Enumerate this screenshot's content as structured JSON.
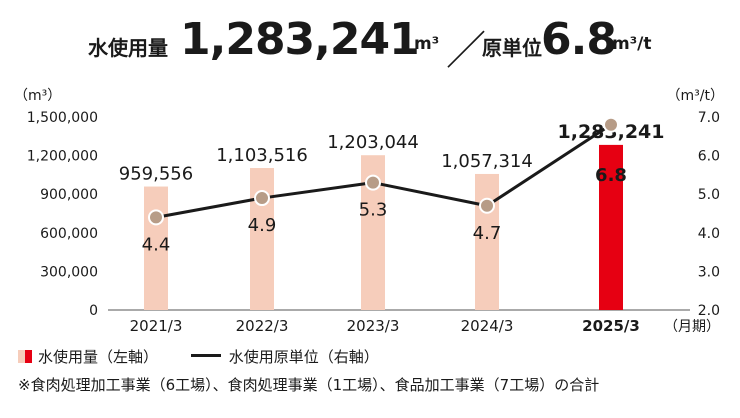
{
  "headline": {
    "label1": "水使用量",
    "value1": "1,283,241",
    "unit1": "m³",
    "slash": "／",
    "label2": "原単位",
    "value2": "6.8",
    "unit2": "m³/t"
  },
  "chart_data": {
    "type": "bar",
    "categories": [
      "2021/3",
      "2022/3",
      "2023/3",
      "2024/3",
      "2025/3"
    ],
    "highlight_index": 4,
    "series": [
      {
        "name": "水使用量（左軸）",
        "axis": "left",
        "values": [
          959556,
          1103516,
          1203044,
          1057314,
          1283241
        ],
        "labels": [
          "959,556",
          "1,103,516",
          "1,203,044",
          "1,057,314",
          "1,283,241"
        ],
        "color": "#f6cdbb",
        "highlight_color": "#e60012"
      },
      {
        "name": "水使用原単位（右軸）",
        "axis": "right",
        "type": "line",
        "values": [
          4.4,
          4.9,
          5.3,
          4.7,
          6.8
        ],
        "labels": [
          "4.4",
          "4.9",
          "5.3",
          "4.7",
          "6.8"
        ],
        "color": "#1a1a1a",
        "marker_color": "#b79c87"
      }
    ],
    "y_left": {
      "unit_label": "（m³）",
      "range": [
        0,
        1500000
      ],
      "ticks": [
        0,
        300000,
        600000,
        900000,
        1200000,
        1500000
      ],
      "tick_labels": [
        "0",
        "300,000",
        "600,000",
        "900,000",
        "1,200,000",
        "1,500,000"
      ]
    },
    "y_right": {
      "unit_label": "（m³/t）",
      "range": [
        2.0,
        7.0
      ],
      "ticks": [
        2,
        3,
        4,
        5,
        6,
        7
      ],
      "tick_labels": [
        "2.0",
        "3.0",
        "4.0",
        "5.0",
        "6.0",
        "7.0"
      ]
    },
    "x_unit_label": "（月期）",
    "grid": false,
    "legend_position": "bottom"
  },
  "legend": {
    "bar_label": "水使用量（左軸）",
    "line_label": "水使用原単位（右軸）"
  },
  "footnote": "※食肉処理加工事業（6工場）、食肉処理事業（1工場）、食品加工事業（7工場）の合計"
}
